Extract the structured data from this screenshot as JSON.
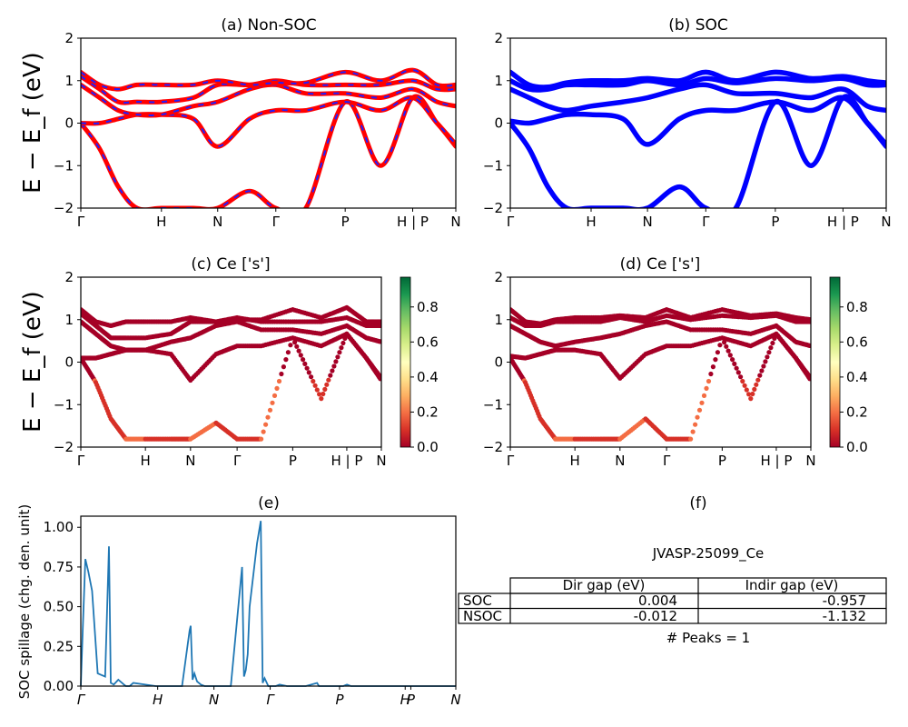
{
  "kpath_labels": [
    "Γ",
    "H",
    "N",
    "Γ",
    "P",
    "H | P",
    "N"
  ],
  "kpath_labels_italic": [
    "Γ",
    "H",
    "N",
    "Γ",
    "P",
    "H",
    "P",
    "N"
  ],
  "energy_ticks": [
    "−2",
    "−1",
    "0",
    "1",
    "2"
  ],
  "energy_ylabel": "E − E_f (eV)",
  "colorbar_ticks": [
    "0.0",
    "0.2",
    "0.4",
    "0.6",
    "0.8"
  ],
  "panels": {
    "a": {
      "title": "(a) Non-SOC"
    },
    "b": {
      "title": "(b) SOC"
    },
    "c": {
      "title": "(c)  Ce ['s']"
    },
    "d": {
      "title": "(d) Ce ['s']"
    },
    "e": {
      "title": "(e)",
      "ylabel": "SOC spillage (chg. den. unit)",
      "yticks": [
        "0.00",
        "0.25",
        "0.50",
        "0.75",
        "1.00"
      ]
    },
    "f": {
      "title": "(f)"
    }
  },
  "table": {
    "material": "JVASP-25099_Ce",
    "headers": [
      "",
      "Dir gap (eV)",
      "Indir gap (eV)"
    ],
    "rows": [
      {
        "label": "SOC",
        "dir": "0.004",
        "indir": "-0.957"
      },
      {
        "label": "NSOC",
        "dir": "-0.012",
        "indir": "-1.132"
      }
    ],
    "peaks": "# Peaks = 1"
  },
  "colors": {
    "nonsoc_band": "#ff0000",
    "nonsoc_dash": "#1f1fff",
    "soc_band": "#0000ff",
    "projection": "#a50026",
    "spillage_line": "#1f77b4"
  },
  "chart_data": [
    {
      "type": "line",
      "title": "(a) Non-SOC",
      "ylabel": "E − E_f (eV)",
      "ylim": [
        -2,
        2
      ],
      "x_ticks": [
        "Γ",
        "H",
        "N",
        "Γ",
        "P",
        "H | P",
        "N"
      ],
      "x_tick_positions": [
        0.0,
        0.215,
        0.365,
        0.52,
        0.705,
        0.885,
        1.0
      ],
      "series": [
        {
          "x": [
            0.0,
            0.05,
            0.1,
            0.15,
            0.215,
            0.3,
            0.365,
            0.45,
            0.52,
            0.6,
            0.705,
            0.8,
            0.885,
            0.95,
            1.0
          ],
          "y": [
            0.0,
            -0.6,
            -1.5,
            -2.0,
            -2.0,
            -2.0,
            -2.0,
            -1.6,
            -2.0,
            -2.0,
            0.5,
            -1.0,
            0.6,
            0.0,
            -0.55
          ]
        },
        {
          "x": [
            0.0,
            0.05,
            0.1,
            0.15,
            0.215,
            0.3,
            0.365,
            0.45,
            0.52,
            0.6,
            0.705,
            0.8,
            0.885,
            0.95,
            1.0
          ],
          "y": [
            0.0,
            0.0,
            0.1,
            0.2,
            0.2,
            0.1,
            -0.55,
            0.1,
            0.3,
            0.3,
            0.5,
            0.3,
            0.6,
            0.0,
            -0.5
          ]
        },
        {
          "x": [
            0.0,
            0.05,
            0.1,
            0.15,
            0.215,
            0.3,
            0.365,
            0.45,
            0.52,
            0.6,
            0.705,
            0.8,
            0.885,
            0.95,
            1.0
          ],
          "y": [
            0.9,
            0.6,
            0.3,
            0.2,
            0.2,
            0.4,
            0.5,
            0.8,
            0.9,
            0.7,
            0.7,
            0.6,
            0.8,
            0.5,
            0.4
          ]
        },
        {
          "x": [
            0.0,
            0.05,
            0.1,
            0.15,
            0.215,
            0.3,
            0.365,
            0.45,
            0.52,
            0.6,
            0.705,
            0.8,
            0.885,
            0.95,
            1.0
          ],
          "y": [
            1.1,
            0.8,
            0.5,
            0.5,
            0.5,
            0.6,
            0.9,
            0.9,
            1.0,
            0.9,
            0.9,
            0.9,
            1.0,
            0.8,
            0.8
          ]
        },
        {
          "x": [
            0.0,
            0.05,
            0.1,
            0.15,
            0.215,
            0.3,
            0.365,
            0.45,
            0.52,
            0.6,
            0.705,
            0.8,
            0.885,
            0.95,
            1.0
          ],
          "y": [
            1.2,
            0.9,
            0.8,
            0.9,
            0.9,
            0.9,
            1.0,
            0.9,
            0.95,
            0.95,
            1.2,
            1.0,
            1.25,
            0.9,
            0.9
          ]
        }
      ]
    },
    {
      "type": "line",
      "title": "(b) SOC",
      "ylim": [
        -2,
        2
      ],
      "x_ticks": [
        "Γ",
        "H",
        "N",
        "Γ",
        "P",
        "H | P",
        "N"
      ],
      "x_tick_positions": [
        0.0,
        0.215,
        0.365,
        0.52,
        0.705,
        0.885,
        1.0
      ],
      "series": [
        {
          "x": [
            0.0,
            0.05,
            0.1,
            0.15,
            0.215,
            0.3,
            0.365,
            0.45,
            0.52,
            0.6,
            0.705,
            0.8,
            0.885,
            0.95,
            1.0
          ],
          "y": [
            0.0,
            -0.6,
            -1.5,
            -2.0,
            -2.0,
            -2.0,
            -2.0,
            -1.5,
            -2.0,
            -2.0,
            0.5,
            -1.0,
            0.6,
            0.0,
            -0.55
          ]
        },
        {
          "x": [
            0.0,
            0.05,
            0.1,
            0.15,
            0.215,
            0.3,
            0.365,
            0.45,
            0.52,
            0.6,
            0.705,
            0.8,
            0.885,
            0.95,
            1.0
          ],
          "y": [
            0.05,
            0.0,
            0.1,
            0.2,
            0.2,
            0.1,
            -0.5,
            0.1,
            0.3,
            0.3,
            0.5,
            0.3,
            0.6,
            0.0,
            -0.5
          ]
        },
        {
          "x": [
            0.0,
            0.05,
            0.1,
            0.15,
            0.215,
            0.3,
            0.365,
            0.45,
            0.52,
            0.6,
            0.705,
            0.8,
            0.885,
            0.95,
            1.0
          ],
          "y": [
            0.8,
            0.6,
            0.4,
            0.3,
            0.4,
            0.5,
            0.6,
            0.8,
            0.9,
            0.7,
            0.7,
            0.6,
            0.8,
            0.4,
            0.3
          ]
        },
        {
          "x": [
            0.0,
            0.05,
            0.1,
            0.15,
            0.215,
            0.3,
            0.365,
            0.45,
            0.52,
            0.6,
            0.705,
            0.8,
            0.885,
            0.95,
            1.0
          ],
          "y": [
            1.0,
            0.8,
            0.8,
            0.9,
            0.9,
            0.9,
            1.0,
            0.9,
            1.05,
            0.95,
            1.05,
            1.0,
            1.05,
            0.9,
            0.9
          ]
        },
        {
          "x": [
            0.0,
            0.05,
            0.1,
            0.15,
            0.215,
            0.3,
            0.365,
            0.45,
            0.52,
            0.6,
            0.705,
            0.8,
            0.885,
            0.95,
            1.0
          ],
          "y": [
            1.2,
            0.9,
            0.85,
            0.95,
            1.0,
            1.0,
            1.05,
            1.0,
            1.2,
            1.0,
            1.2,
            1.05,
            1.1,
            1.0,
            0.95
          ]
        }
      ]
    },
    {
      "type": "scatter",
      "title": "(c)  Ce ['s']",
      "ylabel": "E − E_f (eV)",
      "ylim": [
        -2,
        2
      ],
      "colorbar": {
        "min": 0.0,
        "max": 0.97,
        "ticks": [
          0.0,
          0.2,
          0.4,
          0.6,
          0.8
        ]
      },
      "x_ticks": [
        "Γ",
        "H",
        "N",
        "Γ",
        "P",
        "H | P",
        "N"
      ],
      "x_tick_positions": [
        0.0,
        0.215,
        0.365,
        0.52,
        0.705,
        0.885,
        1.0
      ],
      "series_ref": "same bands as (a), colored by Ce s-weight (mostly 0.0–0.1, a few branches ~0.2–0.3)"
    },
    {
      "type": "scatter",
      "title": "(d) Ce ['s']",
      "ylim": [
        -2,
        2
      ],
      "colorbar": {
        "min": 0.0,
        "max": 0.97,
        "ticks": [
          0.0,
          0.2,
          0.4,
          0.6,
          0.8
        ]
      },
      "x_ticks": [
        "Γ",
        "H",
        "N",
        "Γ",
        "P",
        "H | P",
        "N"
      ],
      "x_tick_positions": [
        0.0,
        0.215,
        0.365,
        0.52,
        0.705,
        0.885,
        1.0
      ],
      "series_ref": "same bands as (b), colored by Ce s-weight"
    },
    {
      "type": "line",
      "title": "(e)",
      "ylabel": "SOC spillage (chg. den. unit)",
      "ylim": [
        0,
        1.07
      ],
      "x_ticks": [
        "Γ",
        "H",
        "N",
        "Γ",
        "P",
        "H",
        "P",
        "N"
      ],
      "x_tick_positions": [
        0.0,
        0.205,
        0.355,
        0.505,
        0.69,
        0.865,
        0.88,
        1.0
      ],
      "x": [
        0.0,
        0.005,
        0.012,
        0.02,
        0.03,
        0.045,
        0.055,
        0.065,
        0.075,
        0.08,
        0.088,
        0.1,
        0.115,
        0.12,
        0.13,
        0.14,
        0.2,
        0.27,
        0.29,
        0.293,
        0.298,
        0.303,
        0.31,
        0.32,
        0.33,
        0.35,
        0.4,
        0.43,
        0.435,
        0.44,
        0.445,
        0.45,
        0.47,
        0.48,
        0.485,
        0.49,
        0.5,
        0.505,
        0.51,
        0.512,
        0.515,
        0.52,
        0.53,
        0.55,
        0.6,
        0.63,
        0.635,
        0.64,
        0.645,
        0.65,
        0.7,
        0.71,
        0.72,
        0.725,
        0.73,
        0.76,
        0.8,
        0.81,
        0.815,
        0.82,
        0.83,
        0.85,
        0.9,
        0.92,
        0.925,
        0.93,
        0.94,
        0.96,
        1.0
      ],
      "y": [
        0.0,
        0.35,
        0.8,
        0.72,
        0.6,
        0.08,
        0.07,
        0.06,
        0.88,
        0.02,
        0.01,
        0.04,
        0.01,
        0.0,
        0.0,
        0.02,
        0.0,
        0.0,
        0.35,
        0.38,
        0.04,
        0.08,
        0.03,
        0.01,
        0.0,
        0.0,
        0.0,
        0.75,
        0.06,
        0.1,
        0.2,
        0.5,
        0.9,
        1.04,
        0.02,
        0.05,
        0.0,
        0.0,
        0.0,
        0.0,
        0.0,
        0.0,
        0.01,
        0.0,
        0.0,
        0.02,
        0.0,
        0.0,
        0.0,
        0.0,
        0.0,
        0.01,
        0.0,
        0.0,
        0.0,
        0.0,
        0.0,
        0.0,
        0.0,
        0.0,
        0.0,
        0.0,
        0.0,
        0.0,
        0.0,
        0.0,
        0.0,
        0.0,
        0.0
      ]
    }
  ]
}
